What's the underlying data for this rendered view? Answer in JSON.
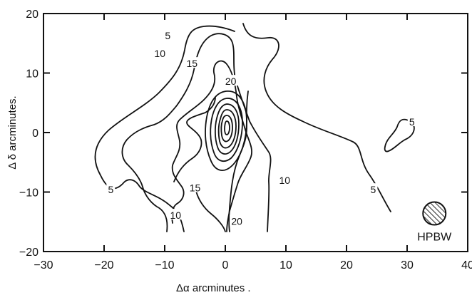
{
  "chart_data": {
    "type": "contour",
    "xlabel": "Δα  arcminutes .",
    "ylabel": "Δ δ  arcminutes.",
    "xlim": [
      -30,
      40
    ],
    "ylim": [
      -20,
      20
    ],
    "x_ticks": [
      -30,
      -20,
      -10,
      0,
      10,
      20,
      30,
      40
    ],
    "y_ticks": [
      -20,
      -10,
      0,
      10,
      20
    ],
    "contour_labels": [
      {
        "text": "5",
        "x": -9.5,
        "y": 16.3
      },
      {
        "text": "10",
        "x": -10.8,
        "y": 13.3
      },
      {
        "text": "15",
        "x": -5.5,
        "y": 11.6
      },
      {
        "text": "20",
        "x": 0.9,
        "y": 8.6
      },
      {
        "text": "5",
        "x": -18.9,
        "y": -9.6
      },
      {
        "text": "15",
        "x": -5.0,
        "y": -9.3
      },
      {
        "text": "10",
        "x": -8.2,
        "y": -13.9
      },
      {
        "text": "20",
        "x": 1.9,
        "y": -14.9
      },
      {
        "text": "10",
        "x": 9.8,
        "y": -8.0
      },
      {
        "text": "5",
        "x": 24.4,
        "y": -9.6
      },
      {
        "text": "5",
        "x": 30.8,
        "y": 1.8
      }
    ],
    "beam": {
      "label": "HPBW",
      "x": 34.5,
      "y": -13.6,
      "diameter_arcmin": 4
    }
  }
}
